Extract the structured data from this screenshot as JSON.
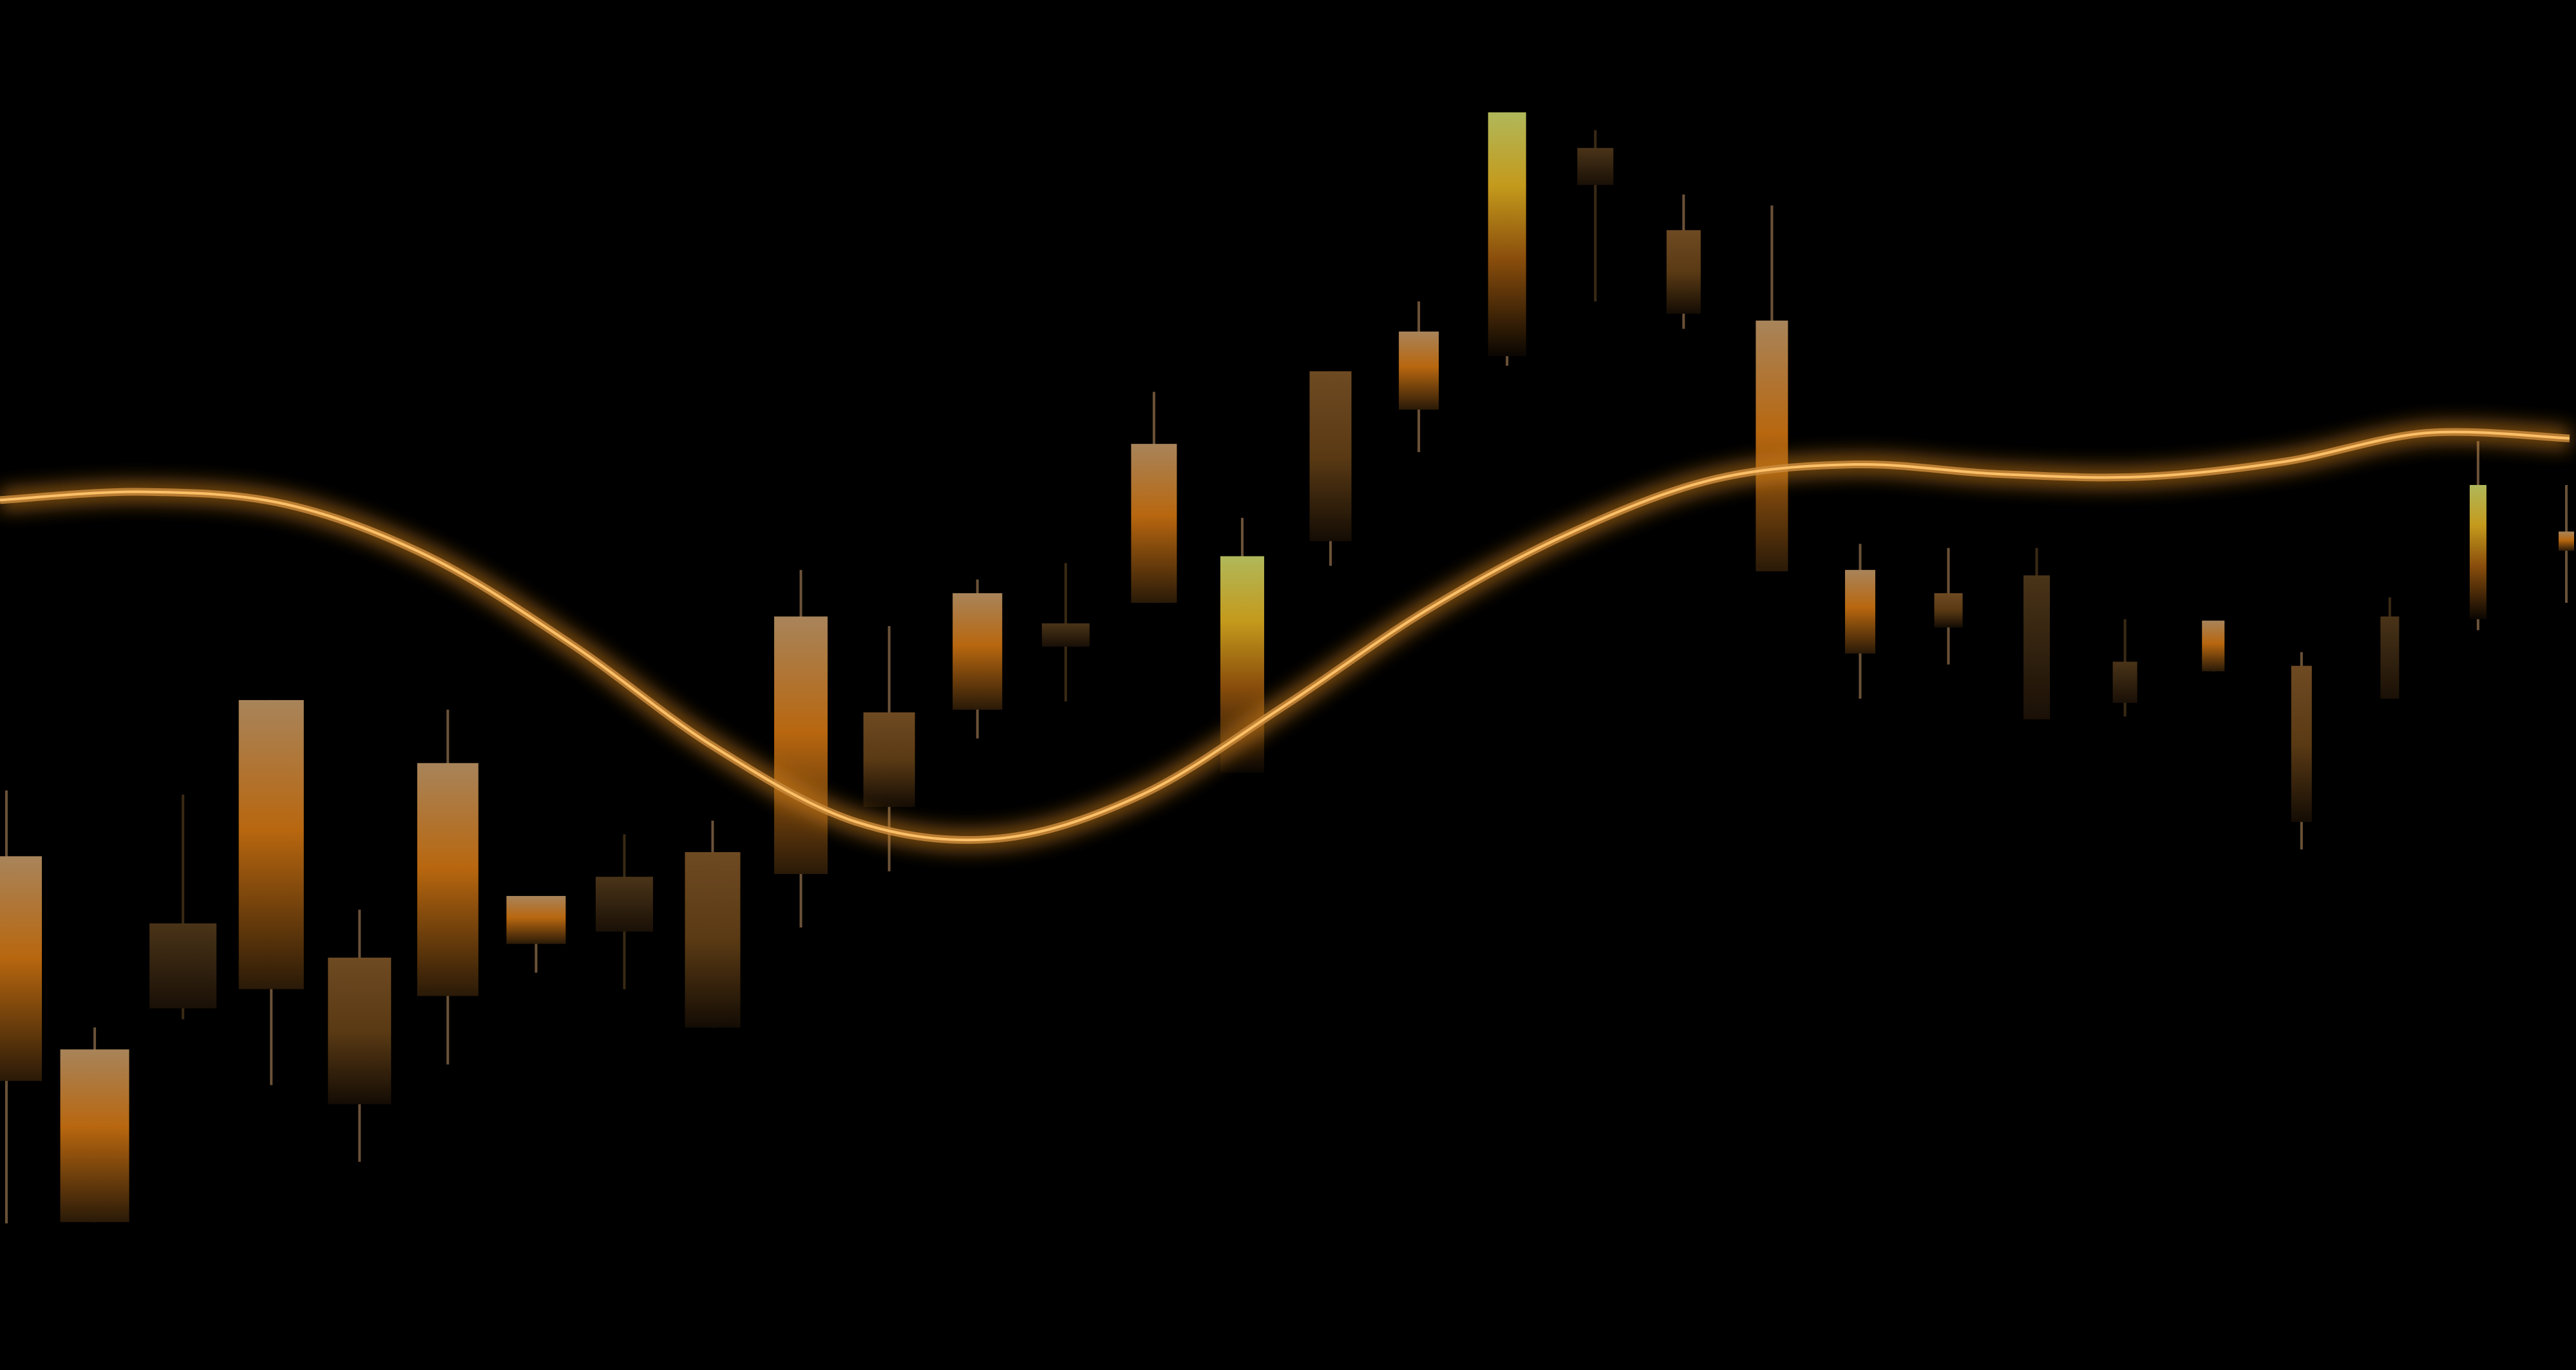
{
  "chart_data": {
    "type": "candlestick",
    "title": "",
    "xlabel": "",
    "ylabel": "",
    "ylim": [
      0,
      100
    ],
    "grid": false,
    "legend": "none",
    "colors": {
      "background": "#000000",
      "accent": "#E08A1E",
      "glow": "#FFC46B",
      "highlight": "#C8D23C",
      "dark_candle": "#4A3418"
    },
    "candles": [
      {
        "open": 37.5,
        "high": 42.3,
        "low": 10.7,
        "close": 21.1,
        "style": "bright"
      },
      {
        "open": 23.4,
        "high": 25.0,
        "low": 10.8,
        "close": 10.8,
        "style": "bright"
      },
      {
        "open": 32.6,
        "high": 42.0,
        "low": 25.6,
        "close": 26.4,
        "style": "dark"
      },
      {
        "open": 48.9,
        "high": 48.9,
        "low": 20.8,
        "close": 27.8,
        "style": "bright"
      },
      {
        "open": 30.1,
        "high": 33.6,
        "low": 15.2,
        "close": 19.4,
        "style": "mid"
      },
      {
        "open": 44.3,
        "high": 48.2,
        "low": 22.3,
        "close": 27.3,
        "style": "bright"
      },
      {
        "open": 34.6,
        "high": 34.6,
        "low": 29.0,
        "close": 31.1,
        "style": "bright"
      },
      {
        "open": 36.0,
        "high": 39.1,
        "low": 27.8,
        "close": 32.0,
        "style": "dark"
      },
      {
        "open": 37.8,
        "high": 40.1,
        "low": 25.0,
        "close": 25.0,
        "style": "mid"
      },
      {
        "open": 55.0,
        "high": 58.4,
        "low": 32.3,
        "close": 36.2,
        "style": "bright"
      },
      {
        "open": 48.0,
        "high": 54.3,
        "low": 36.4,
        "close": 41.1,
        "style": "mid"
      },
      {
        "open": 56.7,
        "high": 57.7,
        "low": 46.1,
        "close": 48.2,
        "style": "bright"
      },
      {
        "open": 54.5,
        "high": 58.9,
        "low": 48.8,
        "close": 52.8,
        "style": "dark"
      },
      {
        "open": 67.6,
        "high": 71.4,
        "low": 56.0,
        "close": 56.0,
        "style": "bright"
      },
      {
        "open": 59.4,
        "high": 62.2,
        "low": 43.6,
        "close": 43.6,
        "style": "highlight"
      },
      {
        "open": 72.9,
        "high": 72.9,
        "low": 58.7,
        "close": 60.5,
        "style": "mid"
      },
      {
        "open": 75.8,
        "high": 78.0,
        "low": 67.0,
        "close": 70.1,
        "style": "bright"
      },
      {
        "open": 91.8,
        "high": 91.8,
        "low": 73.3,
        "close": 74.0,
        "style": "highlight"
      },
      {
        "open": 89.2,
        "high": 90.5,
        "low": 78.0,
        "close": 86.5,
        "style": "dark"
      },
      {
        "open": 83.2,
        "high": 85.8,
        "low": 76.0,
        "close": 77.1,
        "style": "mid"
      },
      {
        "open": 76.6,
        "high": 85.0,
        "low": 58.3,
        "close": 58.3,
        "style": "bright"
      },
      {
        "open": 58.4,
        "high": 60.3,
        "low": 49.0,
        "close": 52.3,
        "style": "bright"
      },
      {
        "open": 56.7,
        "high": 60.0,
        "low": 51.5,
        "close": 54.2,
        "style": "mid"
      },
      {
        "open": 58.0,
        "high": 60.0,
        "low": 47.5,
        "close": 47.5,
        "style": "dark"
      },
      {
        "open": 51.7,
        "high": 54.8,
        "low": 47.7,
        "close": 48.7,
        "style": "dark"
      },
      {
        "open": 54.7,
        "high": 54.7,
        "low": 51.0,
        "close": 51.0,
        "style": "bright"
      },
      {
        "open": 51.4,
        "high": 52.4,
        "low": 38.0,
        "close": 40.0,
        "style": "mid"
      },
      {
        "open": 55.0,
        "high": 56.4,
        "low": 49.0,
        "close": 49.0,
        "style": "dark"
      },
      {
        "open": 64.6,
        "high": 67.8,
        "low": 54.0,
        "close": 54.8,
        "style": "highlight"
      },
      {
        "open": 61.2,
        "high": 64.6,
        "low": 56.0,
        "close": 59.8,
        "style": "bright"
      }
    ],
    "trend_line": [
      63.5,
      64.1,
      63.2,
      59.4,
      53.0,
      45.5,
      40.0,
      38.8,
      42.0,
      48.5,
      55.5,
      61.1,
      65.0,
      66.1,
      65.4,
      65.2,
      66.3,
      68.4,
      68.0
    ]
  }
}
